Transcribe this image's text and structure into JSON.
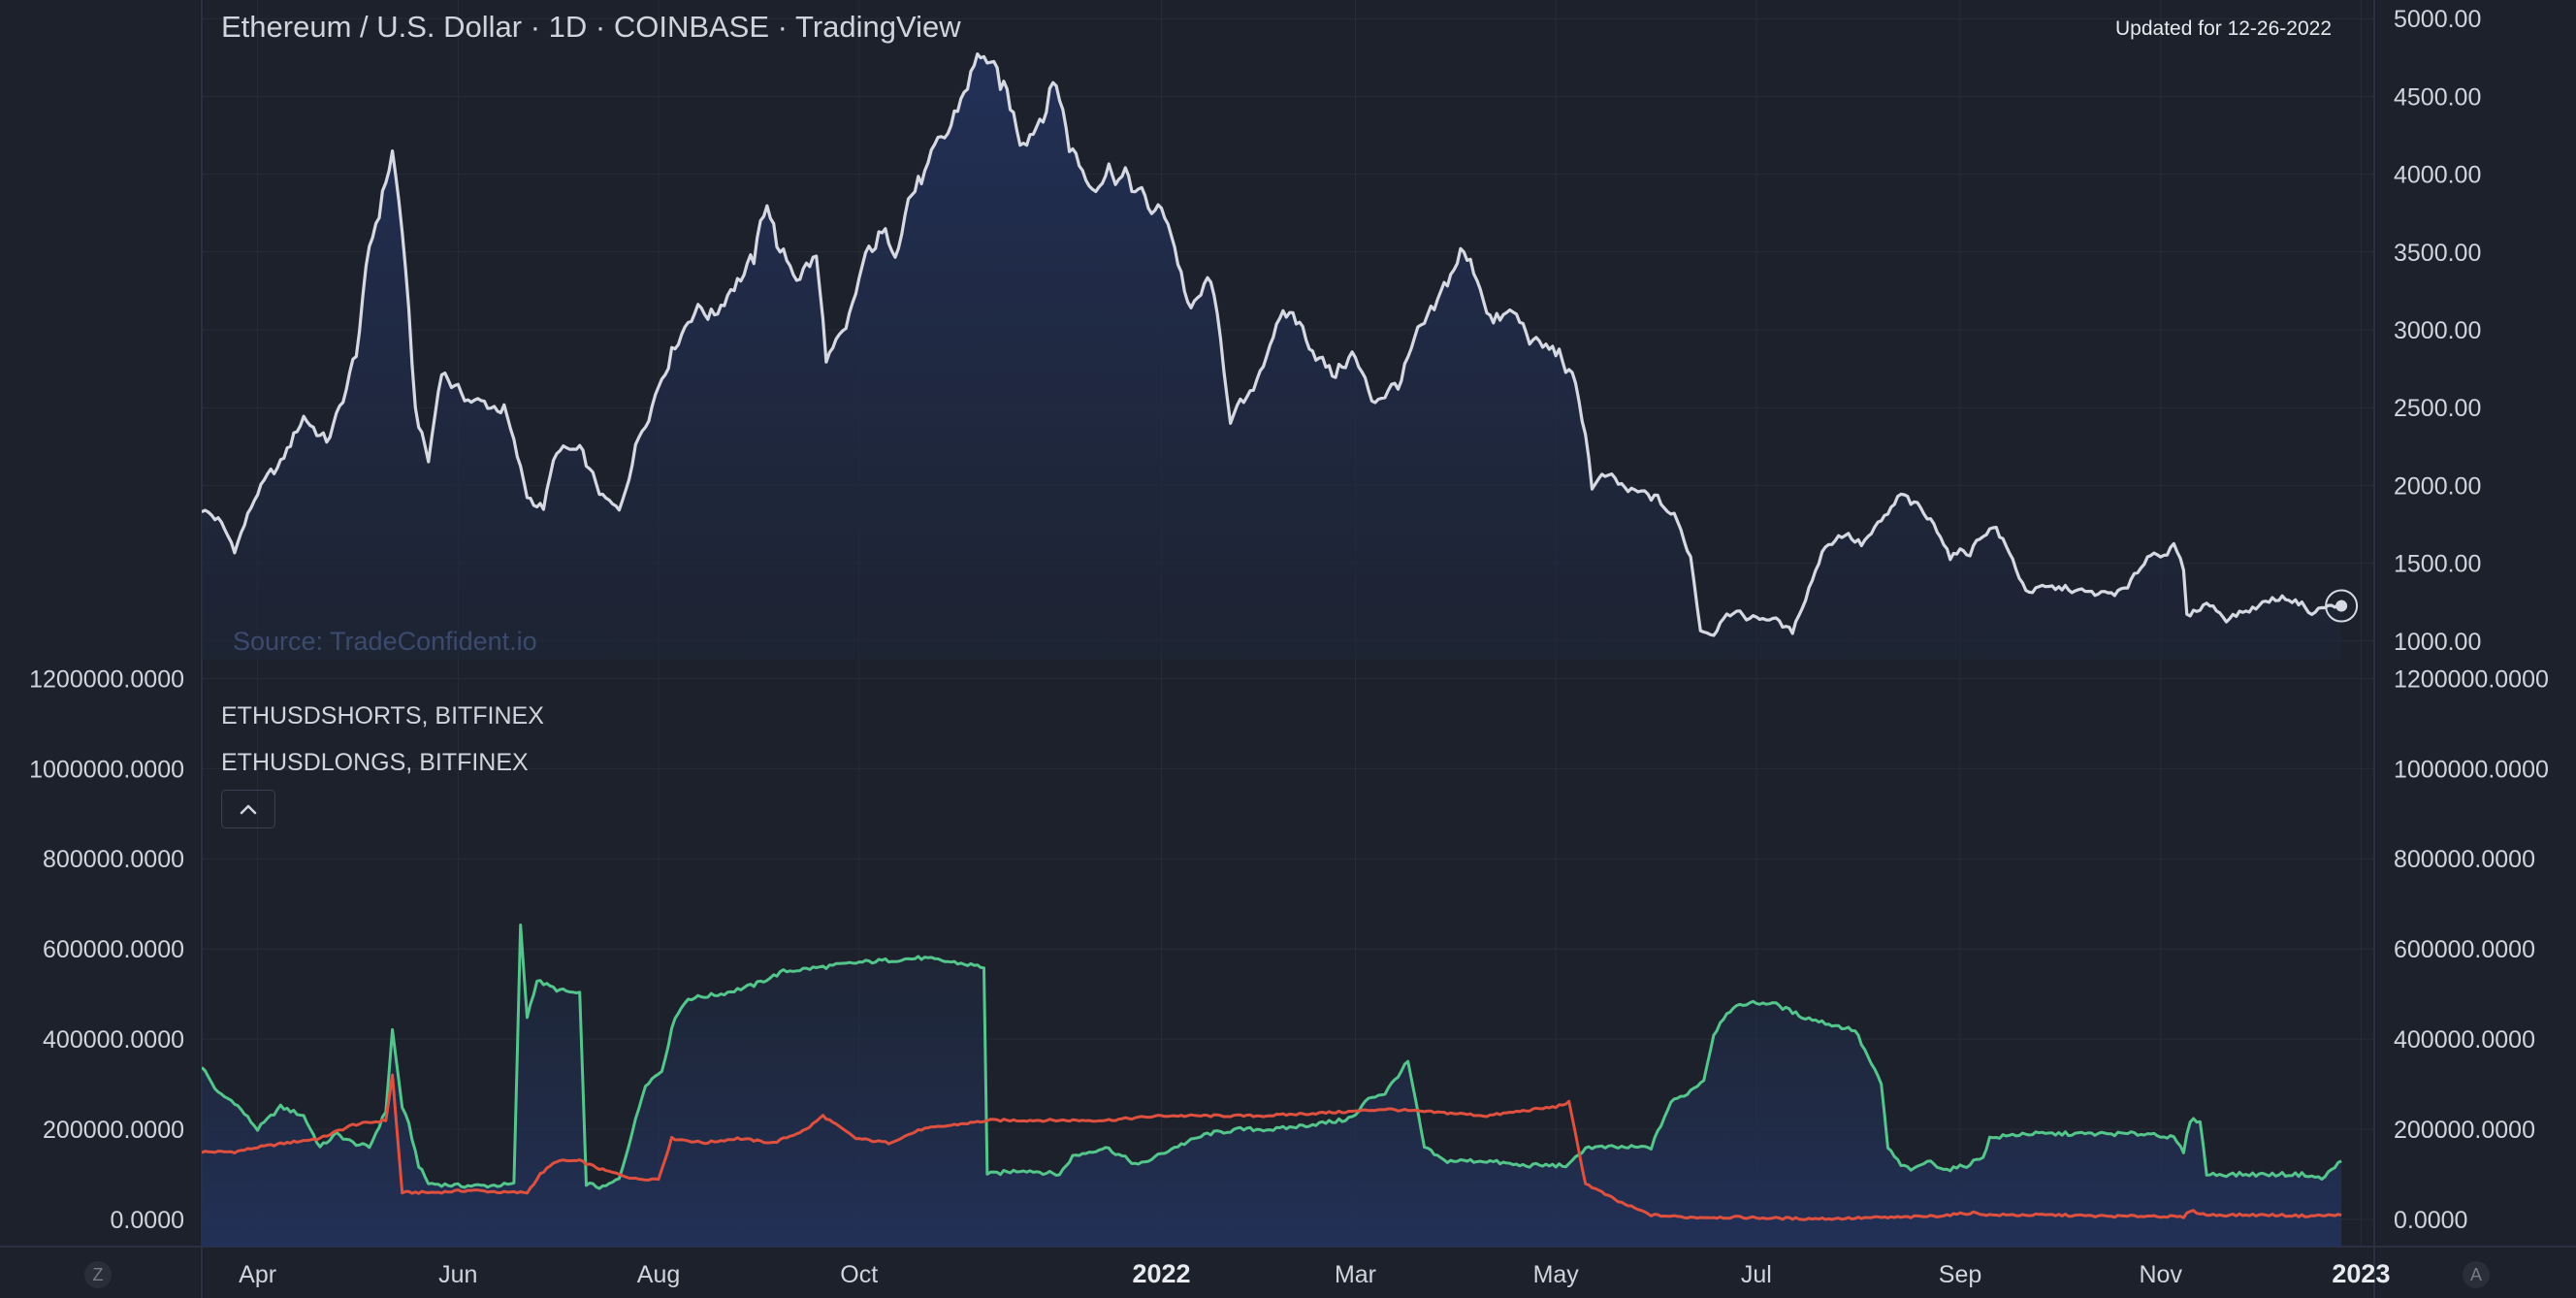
{
  "header": {
    "title": "Ethereum / U.S. Dollar · 1D · COINBASE · TradingView",
    "updated": "Updated for 12-26-2022",
    "source": "Source: TradeConfident.io"
  },
  "legend": {
    "shorts": "ETHUSDSHORTS, BITFINEX",
    "longs": "ETHUSDLONGS, BITFINEX"
  },
  "footer": {
    "left_button": "Z",
    "right_button": "A"
  },
  "colors": {
    "background": "#1c212b",
    "grid": "#262c38",
    "price_line": "#d6d9e2",
    "area_fill": "#22315a",
    "longs": "#54c58b",
    "shorts": "#e0503f",
    "axis_text": "#d1d4dc"
  },
  "icons": {
    "collapse": "chevron-up-icon",
    "last_price": "crosshair-dot-icon"
  },
  "chart_data": [
    {
      "type": "area",
      "title": "Ethereum / U.S. Dollar · 1D · COINBASE · TradingView",
      "x_axis": {
        "type": "date",
        "tick_labels": [
          "Apr",
          "Jun",
          "Aug",
          "Oct",
          "2022",
          "Mar",
          "May",
          "Jul",
          "Sep",
          "Nov",
          "2023"
        ],
        "tick_dates": [
          "2021-04-01",
          "2021-06-01",
          "2021-08-01",
          "2021-10-01",
          "2022-01-01",
          "2022-03-01",
          "2022-05-01",
          "2022-07-01",
          "2022-09-01",
          "2022-11-01",
          "2023-01-01"
        ],
        "range": [
          "2021-03-15",
          "2023-01-05"
        ]
      },
      "y_axis": {
        "position": "right",
        "tick_labels": [
          "5000.00",
          "4500.00",
          "4000.00",
          "3500.00",
          "3000.00",
          "2500.00",
          "2000.00",
          "1500.00",
          "1000.00"
        ],
        "ylim": [
          880,
          5120
        ]
      },
      "grid": true,
      "series": [
        {
          "x": [
            "2021-03-15",
            "2021-03-20",
            "2021-03-25",
            "2021-04-01",
            "2021-04-08",
            "2021-04-15",
            "2021-04-22",
            "2021-04-26",
            "2021-05-01",
            "2021-05-05",
            "2021-05-10",
            "2021-05-12",
            "2021-05-15",
            "2021-05-19",
            "2021-05-23",
            "2021-05-27",
            "2021-06-01",
            "2021-06-08",
            "2021-06-15",
            "2021-06-22",
            "2021-06-27",
            "2021-07-01",
            "2021-07-08",
            "2021-07-15",
            "2021-07-20",
            "2021-07-25",
            "2021-07-31",
            "2021-08-05",
            "2021-08-12",
            "2021-08-18",
            "2021-08-23",
            "2021-08-30",
            "2021-09-03",
            "2021-09-07",
            "2021-09-12",
            "2021-09-18",
            "2021-09-21",
            "2021-09-27",
            "2021-10-02",
            "2021-10-07",
            "2021-10-12",
            "2021-10-16",
            "2021-10-22",
            "2021-10-28",
            "2021-11-03",
            "2021-11-08",
            "2021-11-10",
            "2021-11-15",
            "2021-11-19",
            "2021-11-24",
            "2021-11-30",
            "2021-12-04",
            "2021-12-10",
            "2021-12-16",
            "2021-12-22",
            "2021-12-28",
            "2022-01-03",
            "2022-01-10",
            "2022-01-16",
            "2022-01-22",
            "2022-01-28",
            "2022-02-04",
            "2022-02-10",
            "2022-02-15",
            "2022-02-22",
            "2022-02-28",
            "2022-03-06",
            "2022-03-14",
            "2022-03-20",
            "2022-03-25",
            "2022-04-02",
            "2022-04-07",
            "2022-04-12",
            "2022-04-18",
            "2022-04-25",
            "2022-05-02",
            "2022-05-06",
            "2022-05-10",
            "2022-05-12",
            "2022-05-16",
            "2022-05-24",
            "2022-05-31",
            "2022-06-06",
            "2022-06-11",
            "2022-06-14",
            "2022-06-18",
            "2022-06-22",
            "2022-06-28",
            "2022-07-06",
            "2022-07-12",
            "2022-07-17",
            "2022-07-22",
            "2022-07-28",
            "2022-08-02",
            "2022-08-08",
            "2022-08-14",
            "2022-08-19",
            "2022-08-26",
            "2022-08-29",
            "2022-09-04",
            "2022-09-09",
            "2022-09-12",
            "2022-09-15",
            "2022-09-21",
            "2022-09-28",
            "2022-10-04",
            "2022-10-10",
            "2022-10-16",
            "2022-10-22",
            "2022-10-28",
            "2022-11-05",
            "2022-11-08",
            "2022-11-09",
            "2022-11-15",
            "2022-11-21",
            "2022-11-28",
            "2022-12-05",
            "2022-12-10",
            "2022-12-15",
            "2022-12-17",
            "2022-12-21",
            "2022-12-26"
          ],
          "values": [
            1850,
            1780,
            1590,
            1960,
            2130,
            2450,
            2280,
            2480,
            2850,
            3500,
            3960,
            4150,
            3650,
            2480,
            2150,
            2760,
            2600,
            2520,
            2500,
            1930,
            1860,
            2220,
            2210,
            1920,
            1820,
            2250,
            2600,
            2880,
            3150,
            3100,
            3290,
            3430,
            3850,
            3480,
            3360,
            3460,
            2820,
            2950,
            3400,
            3600,
            3550,
            3860,
            4020,
            4250,
            4600,
            4800,
            4650,
            4500,
            4250,
            4350,
            4600,
            4200,
            3950,
            4050,
            3960,
            3780,
            3720,
            3100,
            3330,
            2450,
            2550,
            3000,
            3100,
            2930,
            2700,
            2850,
            2550,
            2650,
            2950,
            3100,
            3500,
            3350,
            3050,
            3100,
            2900,
            2850,
            2680,
            2350,
            2000,
            2050,
            1950,
            1920,
            1800,
            1550,
            1080,
            1050,
            1200,
            1150,
            1150,
            1050,
            1350,
            1620,
            1700,
            1620,
            1750,
            1930,
            1850,
            1700,
            1550,
            1580,
            1720,
            1730,
            1600,
            1330,
            1330,
            1340,
            1300,
            1300,
            1330,
            1550,
            1600,
            1450,
            1150,
            1250,
            1150,
            1200,
            1270,
            1280,
            1230,
            1180,
            1220,
            1220
          ]
        }
      ],
      "annotations": [
        "Updated for 12-26-2022",
        "Source: TradeConfident.io"
      ]
    },
    {
      "type": "line",
      "x_axis": {
        "type": "date",
        "range": [
          "2021-03-15",
          "2023-01-05"
        ]
      },
      "y_axis": {
        "position": "both",
        "tick_labels": [
          "1200000.0000",
          "1000000.0000",
          "800000.0000",
          "600000.0000",
          "400000.0000",
          "200000.0000",
          "0.0000"
        ],
        "ylim": [
          -60000,
          1220000
        ]
      },
      "grid": true,
      "legend": "top-left",
      "series": [
        {
          "name": "ETHUSDLONGS, BITFINEX",
          "x": [
            "2021-03-15",
            "2021-03-20",
            "2021-03-25",
            "2021-04-01",
            "2021-04-08",
            "2021-04-15",
            "2021-04-20",
            "2021-04-25",
            "2021-04-30",
            "2021-05-05",
            "2021-05-10",
            "2021-05-12",
            "2021-05-15",
            "2021-05-17",
            "2021-05-20",
            "2021-05-23",
            "2021-06-01",
            "2021-06-10",
            "2021-06-18",
            "2021-06-20",
            "2021-06-22",
            "2021-06-25",
            "2021-07-01",
            "2021-07-08",
            "2021-07-10",
            "2021-07-15",
            "2021-07-20",
            "2021-07-25",
            "2021-07-28",
            "2021-08-02",
            "2021-08-06",
            "2021-08-10",
            "2021-08-20",
            "2021-08-30",
            "2021-09-08",
            "2021-09-20",
            "2021-10-01",
            "2021-10-10",
            "2021-10-20",
            "2021-10-30",
            "2021-11-08",
            "2021-11-09",
            "2021-11-20",
            "2021-12-01",
            "2021-12-05",
            "2021-12-15",
            "2021-12-25",
            "2022-01-05",
            "2022-01-15",
            "2022-01-25",
            "2022-02-05",
            "2022-02-15",
            "2022-02-25",
            "2022-03-01",
            "2022-03-05",
            "2022-03-10",
            "2022-03-15",
            "2022-03-17",
            "2022-03-22",
            "2022-03-28",
            "2022-04-10",
            "2022-04-20",
            "2022-05-05",
            "2022-05-10",
            "2022-05-20",
            "2022-05-30",
            "2022-06-05",
            "2022-06-10",
            "2022-06-15",
            "2022-06-18",
            "2022-06-22",
            "2022-06-28",
            "2022-07-06",
            "2022-07-15",
            "2022-07-25",
            "2022-07-31",
            "2022-08-08",
            "2022-08-10",
            "2022-08-14",
            "2022-08-18",
            "2022-08-22",
            "2022-08-28",
            "2022-09-03",
            "2022-09-08",
            "2022-09-10",
            "2022-09-20",
            "2022-09-30",
            "2022-10-10",
            "2022-10-20",
            "2022-10-30",
            "2022-11-05",
            "2022-11-08",
            "2022-11-10",
            "2022-11-13",
            "2022-11-15",
            "2022-11-25",
            "2022-12-05",
            "2022-12-15",
            "2022-12-20",
            "2022-12-26"
          ],
          "values": [
            340000,
            280000,
            260000,
            200000,
            250000,
            230000,
            160000,
            190000,
            170000,
            160000,
            240000,
            420000,
            250000,
            210000,
            120000,
            80000,
            75000,
            75000,
            78000,
            650000,
            450000,
            530000,
            510000,
            500000,
            80000,
            70000,
            90000,
            220000,
            300000,
            330000,
            450000,
            490000,
            500000,
            520000,
            550000,
            560000,
            570000,
            575000,
            580000,
            570000,
            560000,
            100000,
            110000,
            100000,
            140000,
            160000,
            120000,
            160000,
            190000,
            200000,
            200000,
            210000,
            220000,
            230000,
            270000,
            280000,
            330000,
            350000,
            160000,
            130000,
            130000,
            120000,
            120000,
            160000,
            160000,
            160000,
            260000,
            280000,
            310000,
            410000,
            460000,
            480000,
            480000,
            450000,
            430000,
            420000,
            300000,
            160000,
            120000,
            110000,
            130000,
            110000,
            120000,
            140000,
            180000,
            190000,
            190000,
            190000,
            190000,
            190000,
            180000,
            150000,
            220000,
            220000,
            100000,
            100000,
            100000,
            100000,
            90000,
            130000
          ]
        },
        {
          "name": "ETHUSDSHORTS, BITFINEX",
          "x": [
            "2021-03-15",
            "2021-03-25",
            "2021-04-01",
            "2021-04-10",
            "2021-04-20",
            "2021-04-30",
            "2021-05-10",
            "2021-05-12",
            "2021-05-15",
            "2021-05-18",
            "2021-05-25",
            "2021-06-05",
            "2021-06-15",
            "2021-06-22",
            "2021-06-26",
            "2021-07-01",
            "2021-07-08",
            "2021-07-15",
            "2021-07-25",
            "2021-08-01",
            "2021-08-05",
            "2021-08-15",
            "2021-08-25",
            "2021-09-05",
            "2021-09-15",
            "2021-09-20",
            "2021-09-30",
            "2021-10-10",
            "2021-10-20",
            "2021-10-30",
            "2021-11-10",
            "2021-11-20",
            "2021-12-01",
            "2021-12-15",
            "2022-01-01",
            "2022-01-15",
            "2022-02-01",
            "2022-02-15",
            "2022-03-01",
            "2022-03-10",
            "2022-03-20",
            "2022-04-01",
            "2022-04-10",
            "2022-04-20",
            "2022-05-01",
            "2022-05-05",
            "2022-05-10",
            "2022-05-20",
            "2022-05-30",
            "2022-06-10",
            "2022-06-15",
            "2022-06-25",
            "2022-07-05",
            "2022-07-15",
            "2022-07-25",
            "2022-08-05",
            "2022-08-15",
            "2022-08-25",
            "2022-09-05",
            "2022-09-10",
            "2022-09-20",
            "2022-10-01",
            "2022-10-10",
            "2022-10-20",
            "2022-10-30",
            "2022-11-08",
            "2022-11-10",
            "2022-11-15",
            "2022-11-25",
            "2022-12-05",
            "2022-12-15",
            "2022-12-26"
          ],
          "values": [
            150000,
            150000,
            160000,
            170000,
            180000,
            210000,
            220000,
            320000,
            60000,
            60000,
            60000,
            65000,
            60000,
            60000,
            100000,
            130000,
            130000,
            110000,
            90000,
            90000,
            180000,
            170000,
            180000,
            170000,
            200000,
            230000,
            180000,
            170000,
            200000,
            210000,
            220000,
            220000,
            220000,
            220000,
            230000,
            230000,
            230000,
            235000,
            240000,
            245000,
            240000,
            235000,
            230000,
            240000,
            250000,
            260000,
            80000,
            40000,
            10000,
            5000,
            5000,
            5000,
            3000,
            2000,
            2000,
            4000,
            5000,
            8000,
            15000,
            10000,
            10000,
            10000,
            8000,
            7000,
            8000,
            5000,
            20000,
            10000,
            10000,
            10000,
            8000,
            10000
          ]
        }
      ]
    }
  ]
}
